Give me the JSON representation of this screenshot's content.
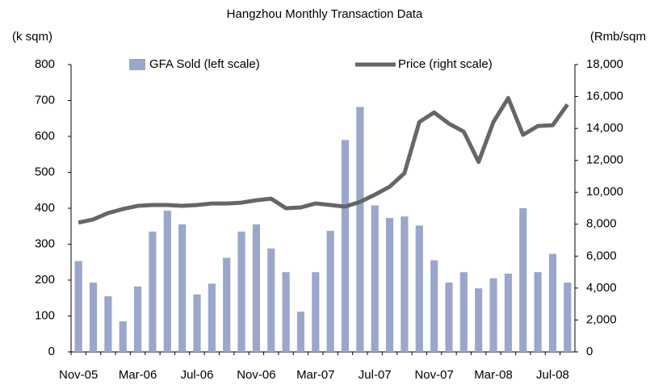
{
  "chart_data": {
    "type": "bar_line",
    "title": "Hangzhou Monthly Transaction Data",
    "y_label": "(k sqm)",
    "y2_label": "(Rmb/sqm",
    "categories": [
      "Nov-05",
      null,
      null,
      null,
      "Mar-06",
      null,
      null,
      null,
      "Jul-06",
      null,
      null,
      null,
      "Nov-06",
      null,
      null,
      null,
      "Mar-07",
      null,
      null,
      null,
      "Jul-07",
      null,
      null,
      null,
      "Nov-07",
      null,
      null,
      null,
      "Mar-08",
      null,
      null,
      null,
      "Jul-08",
      null
    ],
    "series": [
      {
        "name": "GFA Sold (left scale)",
        "type": "bar",
        "color": "#9aa7cb",
        "values": [
          253,
          193,
          155,
          85,
          182,
          335,
          393,
          355,
          160,
          190,
          262,
          335,
          355,
          288,
          222,
          112,
          222,
          337,
          590,
          682,
          408,
          373,
          377,
          352,
          255,
          193,
          222,
          177,
          205,
          218,
          400,
          222,
          273,
          193
        ]
      },
      {
        "name": "Price (right scale)",
        "type": "line",
        "axis": "y2",
        "color": "#666666",
        "values": [
          8100,
          8300,
          8700,
          8950,
          9150,
          9200,
          9200,
          9150,
          9200,
          9300,
          9300,
          9350,
          9500,
          9600,
          9000,
          9050,
          9300,
          9200,
          9100,
          9400,
          9850,
          10350,
          11200,
          14400,
          15000,
          14300,
          13800,
          11900,
          14400,
          15900,
          13600,
          14150,
          14200,
          15500
        ]
      }
    ],
    "ylim": [
      0,
      800
    ],
    "yticks": [
      0,
      100,
      200,
      300,
      400,
      500,
      600,
      700,
      800
    ],
    "y2lim": [
      0,
      18000
    ],
    "y2ticks": [
      0,
      {
        "value": 2000,
        "label": "2,000"
      },
      {
        "value": 4000,
        "label": "4,000"
      },
      {
        "value": 6000,
        "label": "6,000"
      },
      {
        "value": 8000,
        "label": "8,000"
      },
      {
        "value": 10000,
        "label": "10,000"
      },
      {
        "value": 12000,
        "label": "12,000"
      },
      {
        "value": 14000,
        "label": "14,000"
      },
      {
        "value": 16000,
        "label": "16,000"
      },
      {
        "value": 18000,
        "label": "18,000"
      }
    ],
    "legend": "top"
  }
}
